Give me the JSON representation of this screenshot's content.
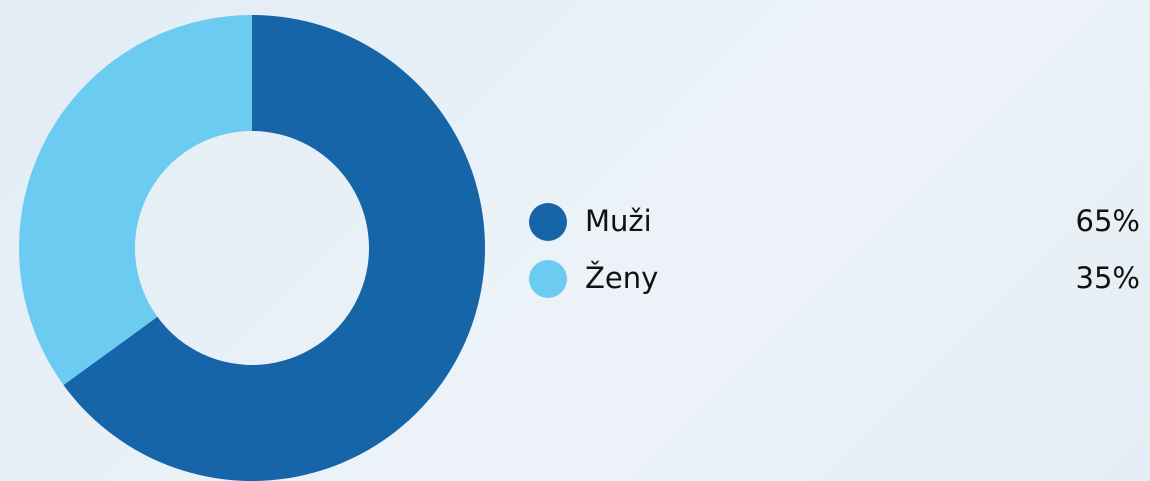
{
  "chart_data": {
    "type": "donut",
    "categories": [
      "Muži",
      "Ženy"
    ],
    "values": [
      65,
      35
    ],
    "value_labels": [
      "65%",
      "35%"
    ],
    "colors": [
      "#1565a8",
      "#6ccbf1"
    ]
  }
}
